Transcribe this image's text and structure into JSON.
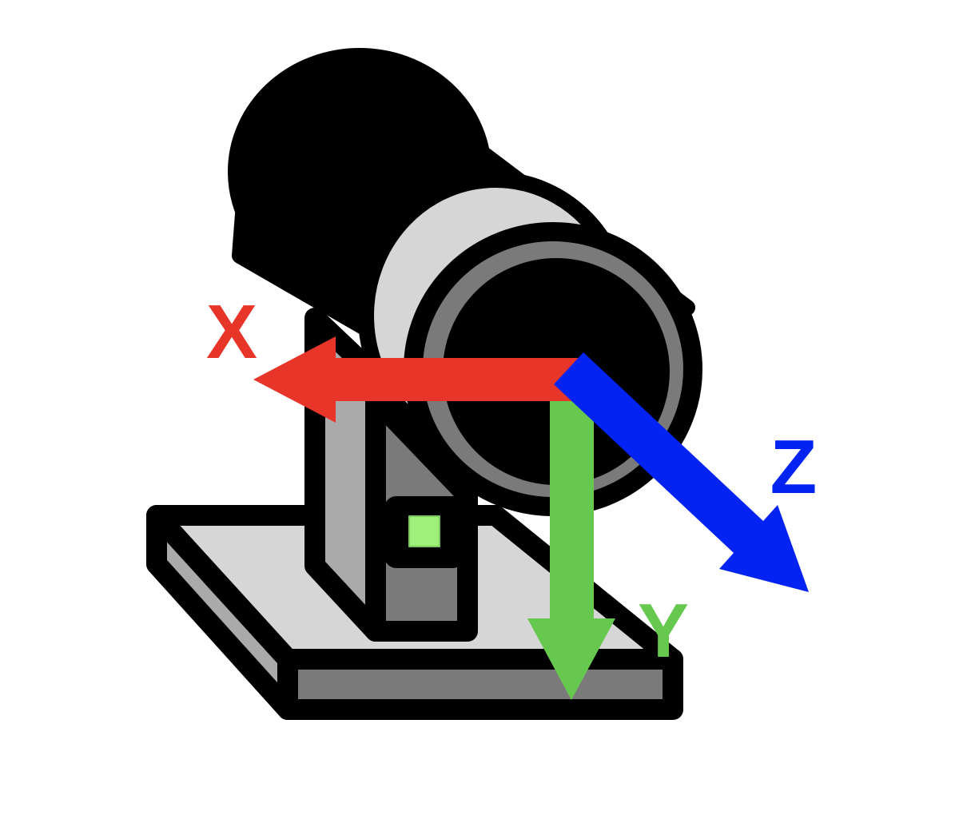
{
  "axes": {
    "x": {
      "label": "X",
      "color": "#e8352a"
    },
    "y": {
      "label": "Y",
      "color": "#66c84f"
    },
    "z": {
      "label": "Z",
      "color": "#0323f2"
    }
  },
  "camera": {
    "body_color": "#000000",
    "face_color": "#d6d6d6",
    "ring_color": "#7a7a7a",
    "shadow_color": "#aaaaaa",
    "indicator_color": "#9ff07a"
  }
}
